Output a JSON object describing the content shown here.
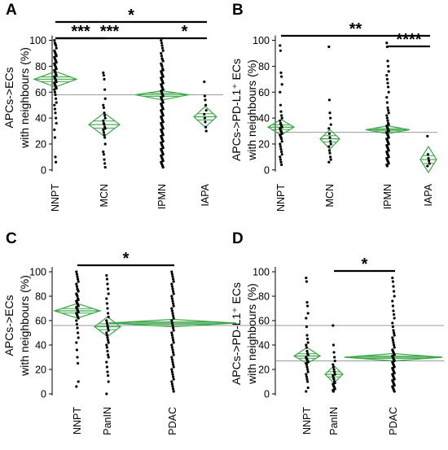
{
  "chart_data": [
    {
      "panel": "A",
      "type": "scatter",
      "ylabel_lines": [
        "APCs->ECs",
        "with neighbours (%)"
      ],
      "yticks": [
        0,
        20,
        40,
        60,
        80,
        100
      ],
      "ylim": [
        -2,
        106
      ],
      "categories": [
        "NNPT",
        "MCN",
        "IPMN",
        "IAPA"
      ],
      "grand_mean": 58,
      "groups": [
        {
          "name": "NNPT",
          "mean": 70,
          "ci": [
            64,
            76
          ],
          "points": [
            100,
            98,
            97,
            96,
            94,
            92,
            91,
            90,
            89,
            88,
            87,
            86,
            85,
            84,
            83,
            82,
            81,
            80,
            79,
            78,
            77,
            76,
            75,
            74,
            73,
            72,
            71,
            70,
            69,
            68,
            67,
            66,
            65,
            64,
            63,
            62,
            60,
            58,
            55,
            52,
            50,
            47,
            44,
            40,
            36,
            31,
            25,
            10,
            6
          ]
        },
        {
          "name": "MCN",
          "mean": 35,
          "ci": [
            26,
            44
          ],
          "points": [
            75,
            73,
            70,
            62,
            55,
            50,
            48,
            44,
            42,
            40,
            38,
            36,
            35,
            33,
            32,
            31,
            29,
            27,
            25,
            20,
            14,
            12,
            8,
            5,
            2
          ]
        },
        {
          "name": "IPMN",
          "mean": 58,
          "ci": [
            54,
            61
          ],
          "points": [
            100,
            98,
            96,
            94,
            92,
            90,
            88,
            86,
            85,
            84,
            82,
            81,
            80,
            78,
            77,
            76,
            75,
            74,
            73,
            72,
            71,
            70,
            69,
            68,
            67,
            66,
            65,
            64,
            63,
            62,
            61,
            60,
            59,
            58,
            57,
            56,
            55,
            54,
            53,
            52,
            51,
            50,
            49,
            48,
            47,
            46,
            45,
            44,
            43,
            42,
            41,
            40,
            39,
            38,
            37,
            36,
            35,
            34,
            33,
            32,
            31,
            30,
            29,
            28,
            27,
            26,
            25,
            24,
            23,
            22,
            21,
            20,
            19,
            18,
            17,
            16,
            15,
            14,
            13,
            12,
            11,
            10,
            9,
            8,
            7,
            6,
            5,
            4,
            3,
            2
          ]
        },
        {
          "name": "IAPA",
          "mean": 41,
          "ci": [
            33,
            49
          ],
          "points": [
            68,
            57,
            54,
            50,
            46,
            43,
            40,
            37,
            33,
            30
          ]
        }
      ],
      "brackets": [
        {
          "from": "NNPT",
          "to": "IAPA",
          "label": "*",
          "level": 0
        },
        {
          "from": "NNPT",
          "to": "MCN",
          "label": "***",
          "level": 1
        },
        {
          "from": "NNPT",
          "to": "IPMN",
          "label": "***",
          "level": 1
        },
        {
          "from": "IPMN",
          "to": "IAPA",
          "label": "*",
          "level": 1
        }
      ]
    },
    {
      "panel": "B",
      "type": "scatter",
      "ylabel_lines": [
        "APCs->PD-L1⁺ ECs",
        "with neighbours (%)"
      ],
      "yticks": [
        0,
        20,
        40,
        60,
        80,
        100
      ],
      "ylim": [
        -2,
        106
      ],
      "categories": [
        "NNPT",
        "MCN",
        "IPMN",
        "IAPA"
      ],
      "grand_mean": 29,
      "groups": [
        {
          "name": "NNPT",
          "mean": 33,
          "ci": [
            27,
            39
          ],
          "points": [
            96,
            92,
            75,
            72,
            66,
            60,
            50,
            45,
            42,
            40,
            38,
            36,
            35,
            34,
            33,
            32,
            31,
            30,
            29,
            28,
            27,
            26,
            25,
            24,
            22,
            20,
            18,
            16,
            14,
            12,
            10,
            8,
            6,
            4
          ]
        },
        {
          "name": "MCN",
          "mean": 24,
          "ci": [
            16,
            31
          ],
          "points": [
            95,
            54,
            44,
            40,
            35,
            32,
            28,
            25,
            22,
            20,
            18,
            15,
            13,
            10,
            8,
            6
          ]
        },
        {
          "name": "IPMN",
          "mean": 31,
          "ci": [
            28,
            34
          ],
          "points": [
            98,
            95,
            84,
            80,
            76,
            73,
            70,
            67,
            64,
            60,
            56,
            52,
            48,
            46,
            44,
            42,
            40,
            38,
            36,
            35,
            34,
            33,
            32,
            31,
            30,
            29,
            28,
            27,
            26,
            25,
            24,
            23,
            22,
            21,
            20,
            19,
            18,
            17,
            16,
            15,
            14,
            13,
            12,
            11,
            10,
            9,
            8,
            7,
            6,
            5,
            4,
            3
          ]
        },
        {
          "name": "IAPA",
          "mean": 8,
          "ci": [
            -2,
            18
          ],
          "points": [
            26,
            12,
            9,
            7,
            5,
            3
          ]
        }
      ],
      "brackets": [
        {
          "from": "NNPT",
          "to": "IAPA",
          "label": "**",
          "level": 0
        },
        {
          "from": "IPMN",
          "to": "IAPA",
          "label": "****",
          "level": 1
        }
      ]
    },
    {
      "panel": "C",
      "type": "scatter",
      "ylabel_lines": [
        "APCs->ECs",
        "with neighbours (%)"
      ],
      "yticks": [
        0,
        20,
        40,
        60,
        80,
        100
      ],
      "ylim": [
        -2,
        106
      ],
      "categories": [
        "NNPT",
        "PanIN",
        "PDAC"
      ],
      "grand_mean": 56,
      "groups": [
        {
          "name": "NNPT",
          "mean": 68,
          "ci": [
            62,
            74
          ],
          "points": [
            100,
            98,
            96,
            94,
            92,
            90,
            88,
            86,
            85,
            84,
            82,
            81,
            80,
            78,
            77,
            76,
            75,
            74,
            73,
            72,
            71,
            70,
            69,
            68,
            67,
            66,
            65,
            64,
            63,
            62,
            60,
            57,
            54,
            50,
            46,
            42,
            36,
            30,
            25,
            10,
            6
          ]
        },
        {
          "name": "PanIN",
          "mean": 55,
          "ci": [
            47,
            63
          ],
          "points": [
            97,
            94,
            90,
            86,
            82,
            78,
            74,
            70,
            66,
            63,
            60,
            58,
            56,
            54,
            52,
            50,
            48,
            46,
            44,
            42,
            40,
            38,
            35,
            32,
            30,
            26,
            22,
            18,
            15,
            10,
            0
          ]
        },
        {
          "name": "PDAC",
          "mean": 58,
          "ci": [
            55,
            61
          ],
          "points": [
            100,
            98,
            96,
            94,
            92,
            90,
            88,
            86,
            84,
            82,
            80,
            78,
            76,
            74,
            72,
            70,
            68,
            66,
            64,
            62,
            60,
            58,
            56,
            54,
            52,
            50,
            48,
            46,
            44,
            42,
            40,
            38,
            36,
            34,
            32,
            30,
            28,
            26,
            24,
            22,
            20,
            18,
            16,
            14,
            12,
            10,
            8,
            6,
            4,
            2
          ]
        }
      ],
      "brackets": [
        {
          "from": "NNPT",
          "to": "PDAC",
          "label": "*",
          "level": 0
        }
      ]
    },
    {
      "panel": "D",
      "type": "scatter",
      "ylabel_lines": [
        "APCs->PD-L1⁺ ECs",
        "with neighbours (%)"
      ],
      "yticks": [
        0,
        20,
        40,
        60,
        80,
        100
      ],
      "ylim": [
        -2,
        106
      ],
      "categories": [
        "NNPT",
        "PanIN",
        "PDAC"
      ],
      "grand_mean": 27,
      "groups": [
        {
          "name": "NNPT",
          "mean": 31,
          "ci": [
            25,
            38
          ],
          "points": [
            95,
            92,
            75,
            72,
            66,
            62,
            55,
            48,
            45,
            42,
            40,
            38,
            35,
            33,
            32,
            30,
            29,
            28,
            27,
            26,
            25,
            24,
            22,
            20,
            18,
            16,
            14,
            12,
            10,
            5,
            2
          ]
        },
        {
          "name": "PanIN",
          "mean": 16,
          "ci": [
            9,
            23
          ],
          "points": [
            56,
            40,
            34,
            30,
            27,
            24,
            22,
            20,
            18,
            16,
            15,
            13,
            12,
            10,
            9,
            8,
            7,
            6,
            5,
            4,
            3,
            2
          ]
        },
        {
          "name": "PDAC",
          "mean": 30,
          "ci": [
            27,
            33
          ],
          "points": [
            95,
            92,
            88,
            84,
            80,
            76,
            72,
            68,
            65,
            62,
            58,
            55,
            52,
            50,
            48,
            46,
            44,
            42,
            40,
            38,
            36,
            35,
            34,
            33,
            32,
            31,
            30,
            29,
            28,
            27,
            26,
            25,
            24,
            23,
            22,
            21,
            20,
            19,
            18,
            17,
            16,
            15,
            14,
            13,
            12,
            11,
            10,
            9,
            8,
            7,
            6,
            5,
            4,
            3,
            2
          ]
        }
      ],
      "brackets": [
        {
          "from": "PanIN",
          "to": "PDAC",
          "label": "*",
          "level": 0
        }
      ]
    }
  ]
}
